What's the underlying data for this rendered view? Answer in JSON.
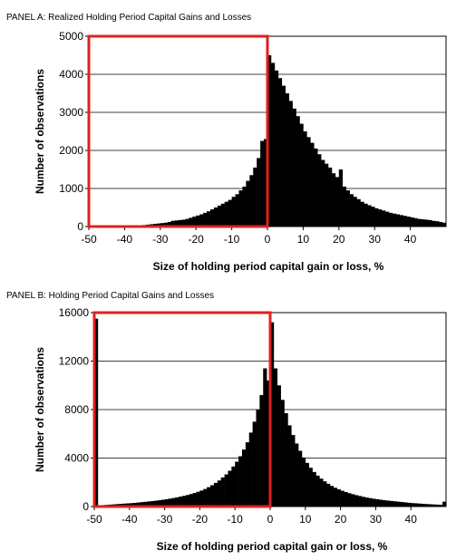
{
  "chart_data": [
    {
      "type": "bar",
      "panel_title": "PANEL A: Realized Holding Period Capital Gains and Losses",
      "xlabel": "Size of holding period capital gain or loss, %",
      "ylabel": "Number of observations",
      "xlim": [
        -50,
        50
      ],
      "ylim": [
        0,
        5000
      ],
      "x_ticks": [
        -50,
        -40,
        -30,
        -20,
        -10,
        0,
        10,
        20,
        30,
        40
      ],
      "y_ticks": [
        0,
        1000,
        2000,
        3000,
        4000,
        5000
      ],
      "grid": "horizontal",
      "bar_color": "#000000",
      "highlight_box": {
        "x_range": [
          -50,
          0
        ],
        "y_range": [
          0,
          5000
        ],
        "color": "#e02020"
      },
      "bin_width": 1,
      "x": [
        -50,
        -49,
        -48,
        -47,
        -46,
        -45,
        -44,
        -43,
        -42,
        -41,
        -40,
        -39,
        -38,
        -37,
        -36,
        -35,
        -34,
        -33,
        -32,
        -31,
        -30,
        -29,
        -28,
        -27,
        -26,
        -25,
        -24,
        -23,
        -22,
        -21,
        -20,
        -19,
        -18,
        -17,
        -16,
        -15,
        -14,
        -13,
        -12,
        -11,
        -10,
        -9,
        -8,
        -7,
        -6,
        -5,
        -4,
        -3,
        -2,
        -1,
        0,
        1,
        2,
        3,
        4,
        5,
        6,
        7,
        8,
        9,
        10,
        11,
        12,
        13,
        14,
        15,
        16,
        17,
        18,
        19,
        20,
        21,
        22,
        23,
        24,
        25,
        26,
        27,
        28,
        29,
        30,
        31,
        32,
        33,
        34,
        35,
        36,
        37,
        38,
        39,
        40,
        41,
        42,
        43,
        44,
        45,
        46,
        47,
        48,
        49
      ],
      "values": [
        10,
        10,
        10,
        10,
        10,
        10,
        10,
        10,
        15,
        15,
        20,
        20,
        25,
        25,
        30,
        40,
        50,
        60,
        70,
        80,
        90,
        100,
        120,
        150,
        160,
        170,
        180,
        200,
        230,
        260,
        290,
        320,
        360,
        400,
        450,
        500,
        550,
        600,
        650,
        700,
        780,
        850,
        950,
        1050,
        1200,
        1350,
        1550,
        1800,
        2250,
        2300,
        4500,
        4300,
        4100,
        3900,
        3700,
        3500,
        3300,
        3100,
        2900,
        2700,
        2500,
        2350,
        2200,
        2050,
        1900,
        1750,
        1650,
        1550,
        1400,
        1300,
        1500,
        1050,
        950,
        850,
        780,
        720,
        650,
        600,
        560,
        520,
        480,
        450,
        420,
        390,
        360,
        340,
        320,
        300,
        280,
        260,
        240,
        220,
        200,
        190,
        180,
        170,
        150,
        140,
        120,
        100
      ]
    },
    {
      "type": "bar",
      "panel_title": "PANEL B: Holding Period Capital Gains and Losses",
      "xlabel": "Size of holding period capital gain or loss, %",
      "ylabel": "Number of observations",
      "xlim": [
        -50,
        50
      ],
      "ylim": [
        0,
        16000
      ],
      "x_ticks": [
        -50,
        -40,
        -30,
        -20,
        -10,
        0,
        10,
        20,
        30,
        40
      ],
      "y_ticks": [
        0,
        4000,
        8000,
        12000,
        16000
      ],
      "grid": "horizontal",
      "bar_color": "#000000",
      "highlight_box": {
        "x_range": [
          -50,
          0
        ],
        "y_range": [
          0,
          16000
        ],
        "color": "#e02020"
      },
      "bin_width": 1,
      "x": [
        -50,
        -49,
        -48,
        -47,
        -46,
        -45,
        -44,
        -43,
        -42,
        -41,
        -40,
        -39,
        -38,
        -37,
        -36,
        -35,
        -34,
        -33,
        -32,
        -31,
        -30,
        -29,
        -28,
        -27,
        -26,
        -25,
        -24,
        -23,
        -22,
        -21,
        -20,
        -19,
        -18,
        -17,
        -16,
        -15,
        -14,
        -13,
        -12,
        -11,
        -10,
        -9,
        -8,
        -7,
        -6,
        -5,
        -4,
        -3,
        -2,
        -1,
        0,
        1,
        2,
        3,
        4,
        5,
        6,
        7,
        8,
        9,
        10,
        11,
        12,
        13,
        14,
        15,
        16,
        17,
        18,
        19,
        20,
        21,
        22,
        23,
        24,
        25,
        26,
        27,
        28,
        29,
        30,
        31,
        32,
        33,
        34,
        35,
        36,
        37,
        38,
        39,
        40,
        41,
        42,
        43,
        44,
        45,
        46,
        47,
        48,
        49
      ],
      "values": [
        15500,
        100,
        120,
        140,
        160,
        180,
        200,
        220,
        240,
        260,
        280,
        300,
        330,
        360,
        390,
        420,
        450,
        480,
        520,
        560,
        600,
        650,
        700,
        760,
        820,
        880,
        950,
        1030,
        1120,
        1220,
        1320,
        1450,
        1600,
        1760,
        1950,
        2150,
        2400,
        2650,
        2950,
        3300,
        3700,
        4150,
        4700,
        5300,
        6100,
        7000,
        8000,
        9200,
        11400,
        10400,
        15200,
        11400,
        10000,
        8800,
        7700,
        6700,
        5900,
        5200,
        4600,
        4050,
        3600,
        3200,
        2850,
        2550,
        2300,
        2080,
        1880,
        1700,
        1550,
        1420,
        1300,
        1200,
        1100,
        1020,
        940,
        870,
        800,
        740,
        690,
        640,
        600,
        560,
        520,
        490,
        460,
        430,
        400,
        370,
        340,
        310,
        285,
        265,
        245,
        225,
        205,
        190,
        175,
        160,
        150,
        400
      ]
    }
  ]
}
